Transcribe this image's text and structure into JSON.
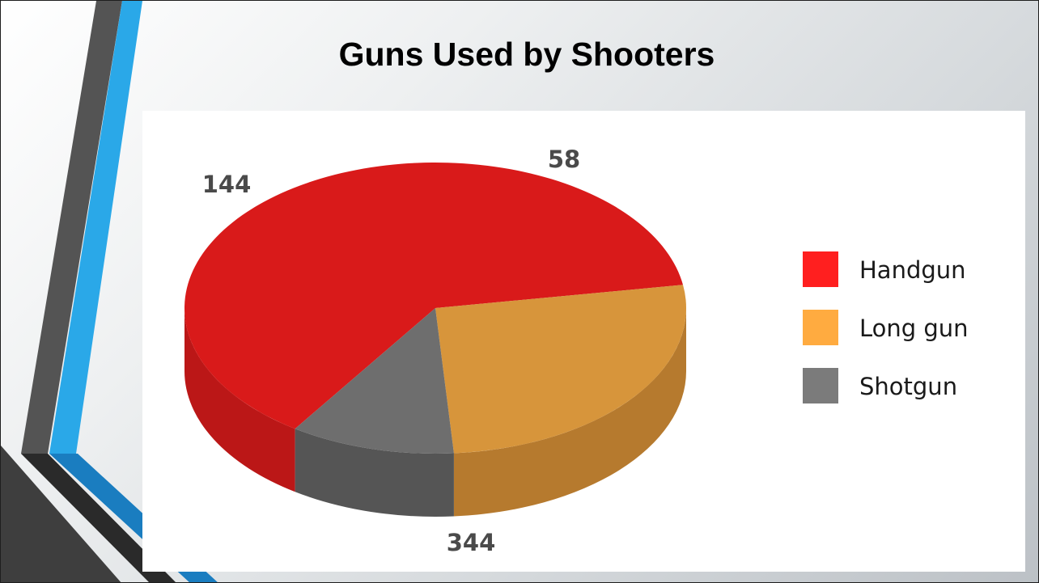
{
  "slide": {
    "title": "Guns Used by Shooters",
    "background_colors": [
      "#ffffff",
      "#bcc1c6"
    ],
    "accent_colors": [
      "#2aa8e8",
      "#545454",
      "#1a7dc0"
    ]
  },
  "chart_data": {
    "type": "pie",
    "style": "3d",
    "title": "",
    "categories": [
      "Handgun",
      "Long gun",
      "Shotgun"
    ],
    "values": [
      344,
      144,
      58
    ],
    "data_labels": [
      "344",
      "144",
      "58"
    ],
    "colors": [
      "#d91a1a",
      "#d7953b",
      "#6e6e6e"
    ],
    "side_colors": [
      "#bb1717",
      "#b67a2e",
      "#555555"
    ],
    "legend_colors": [
      "#ff1f1f",
      "#ffab40",
      "#7b7b7b"
    ],
    "label_color": "#4a4a4a",
    "legend_position": "right"
  }
}
